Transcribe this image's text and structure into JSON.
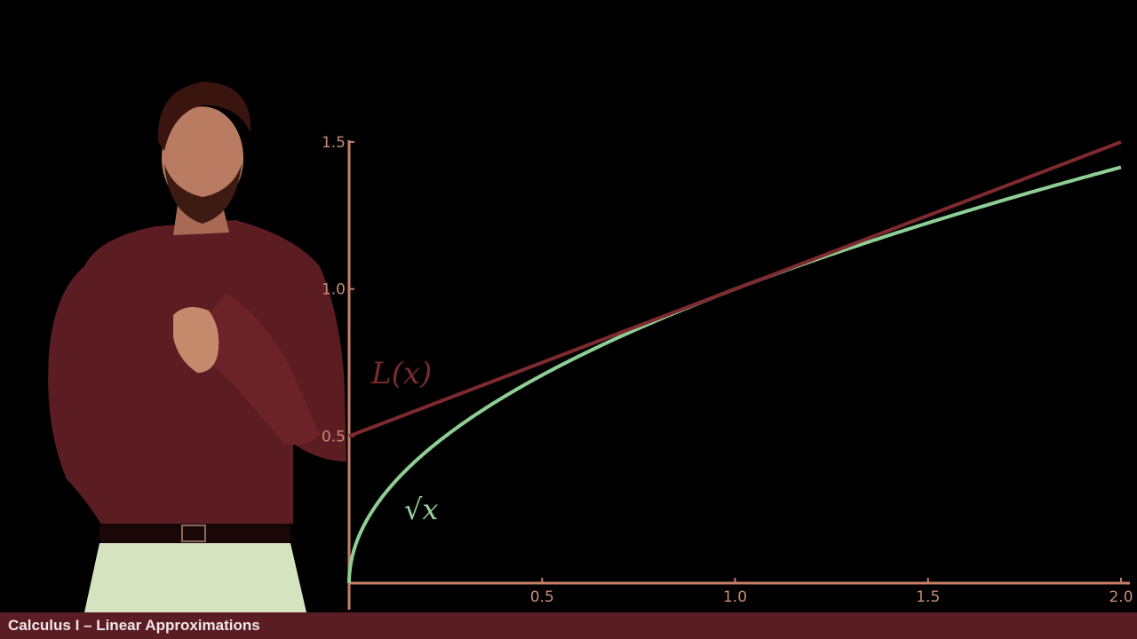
{
  "colors": {
    "background": "#000000",
    "axes": "#c97e6a",
    "tick_labels": "#c98a72",
    "tangent_line": "#7e2a2e",
    "sqrt_curve": "#8ecf94",
    "footer_bar": "#5a1d24",
    "footer_text": "#f2e6e6"
  },
  "presenter": {
    "description_icon": "presenter-figure"
  },
  "footer": {
    "title": "Calculus I – Linear Approximations"
  },
  "chart_data": {
    "type": "line",
    "title": "",
    "xlabel": "",
    "ylabel": "",
    "xlim": [
      0,
      2
    ],
    "ylim": [
      0,
      1.5
    ],
    "x_ticks": [
      "0.5",
      "1.0",
      "1.5",
      "2.0"
    ],
    "y_ticks": [
      "0.5",
      "1.0",
      "1.5"
    ],
    "x_tick_values": [
      0.5,
      1.0,
      1.5,
      2.0
    ],
    "y_tick_values": [
      0.5,
      1.0,
      1.5
    ],
    "grid": false,
    "series": [
      {
        "name": "L(x)",
        "function": "0.5 + 0.5x",
        "x": [
          0,
          2
        ],
        "y": [
          0.5,
          1.5
        ]
      },
      {
        "name": "√x",
        "function": "sqrt(x)",
        "x": [
          0,
          0.01,
          0.05,
          0.1,
          0.25,
          0.5,
          0.75,
          1.0,
          1.25,
          1.5,
          1.75,
          2.0
        ],
        "y": [
          0,
          0.1,
          0.224,
          0.316,
          0.5,
          0.707,
          0.866,
          1.0,
          1.118,
          1.225,
          1.323,
          1.414
        ]
      }
    ],
    "annotations": [
      {
        "text": "L(x)",
        "series": "L(x)"
      },
      {
        "text": "√x",
        "series": "√x"
      }
    ]
  }
}
